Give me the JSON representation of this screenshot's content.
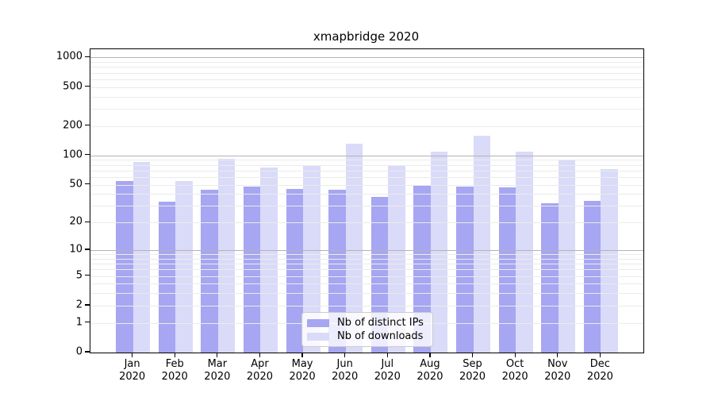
{
  "title": "xmapbridge 2020",
  "chart_data": {
    "type": "bar",
    "title": "xmapbridge 2020",
    "y_scale": "log(1+x)",
    "grid": "major+minor horizontal, drawn over bars",
    "legend_position": "inside bottom-center",
    "categories": [
      "Jan",
      "Feb",
      "Mar",
      "Apr",
      "May",
      "Jun",
      "Jul",
      "Aug",
      "Sep",
      "Oct",
      "Nov",
      "Dec"
    ],
    "x_tick_second_line": "2020",
    "series": [
      {
        "name": "Nb of distinct IPs",
        "color": "#a6a6f2",
        "values": [
          54,
          33,
          44,
          48,
          45,
          44,
          37,
          49,
          48,
          47,
          32,
          34
        ]
      },
      {
        "name": "Nb of downloads",
        "color": "#dadaf9",
        "values": [
          85,
          55,
          93,
          75,
          80,
          133,
          79,
          109,
          160,
          110,
          90,
          73
        ]
      }
    ],
    "y_ticks": [
      0,
      1,
      2,
      5,
      10,
      20,
      50,
      100,
      200,
      500,
      1000
    ],
    "y_minor_gridlines": [
      1,
      2,
      3,
      4,
      5,
      6,
      7,
      8,
      9,
      20,
      30,
      40,
      50,
      60,
      70,
      80,
      90,
      200,
      300,
      400,
      500,
      600,
      700,
      800,
      900
    ],
    "y_major_gridlines": [
      10,
      100,
      1000
    ],
    "ylim": [
      0,
      1215
    ],
    "xlabel": "",
    "ylabel": ""
  },
  "colors": {
    "bar_dark": "#a6a6f2",
    "bar_light": "#dadaf9",
    "grid_major": "#b3b3b3",
    "grid_minor": "#ebebeb",
    "spine": "#000000",
    "background": "#ffffff",
    "text": "#000000"
  }
}
